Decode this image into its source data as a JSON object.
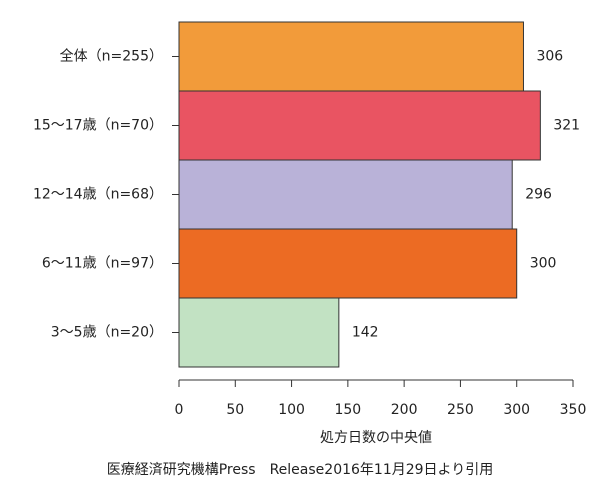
{
  "chart_data": {
    "type": "bar",
    "orientation": "horizontal",
    "categories": [
      "全体（n=255）",
      "15〜17歳（n=70）",
      "12〜14歳（n=68）",
      "6〜11歳（n=97）",
      "3〜5歳（n=20）"
    ],
    "values": [
      306,
      321,
      296,
      300,
      142
    ],
    "colors": [
      "#f29b3a",
      "#e95462",
      "#b9b2d8",
      "#ec6b23",
      "#c2e2c3"
    ],
    "xlim": [
      0,
      350
    ],
    "xticks": [
      0,
      50,
      100,
      150,
      200,
      250,
      300,
      350
    ],
    "xlabel": "処方日数の中央値",
    "source": "医療経済研究機構Press　Release2016年11月29日より引用"
  }
}
